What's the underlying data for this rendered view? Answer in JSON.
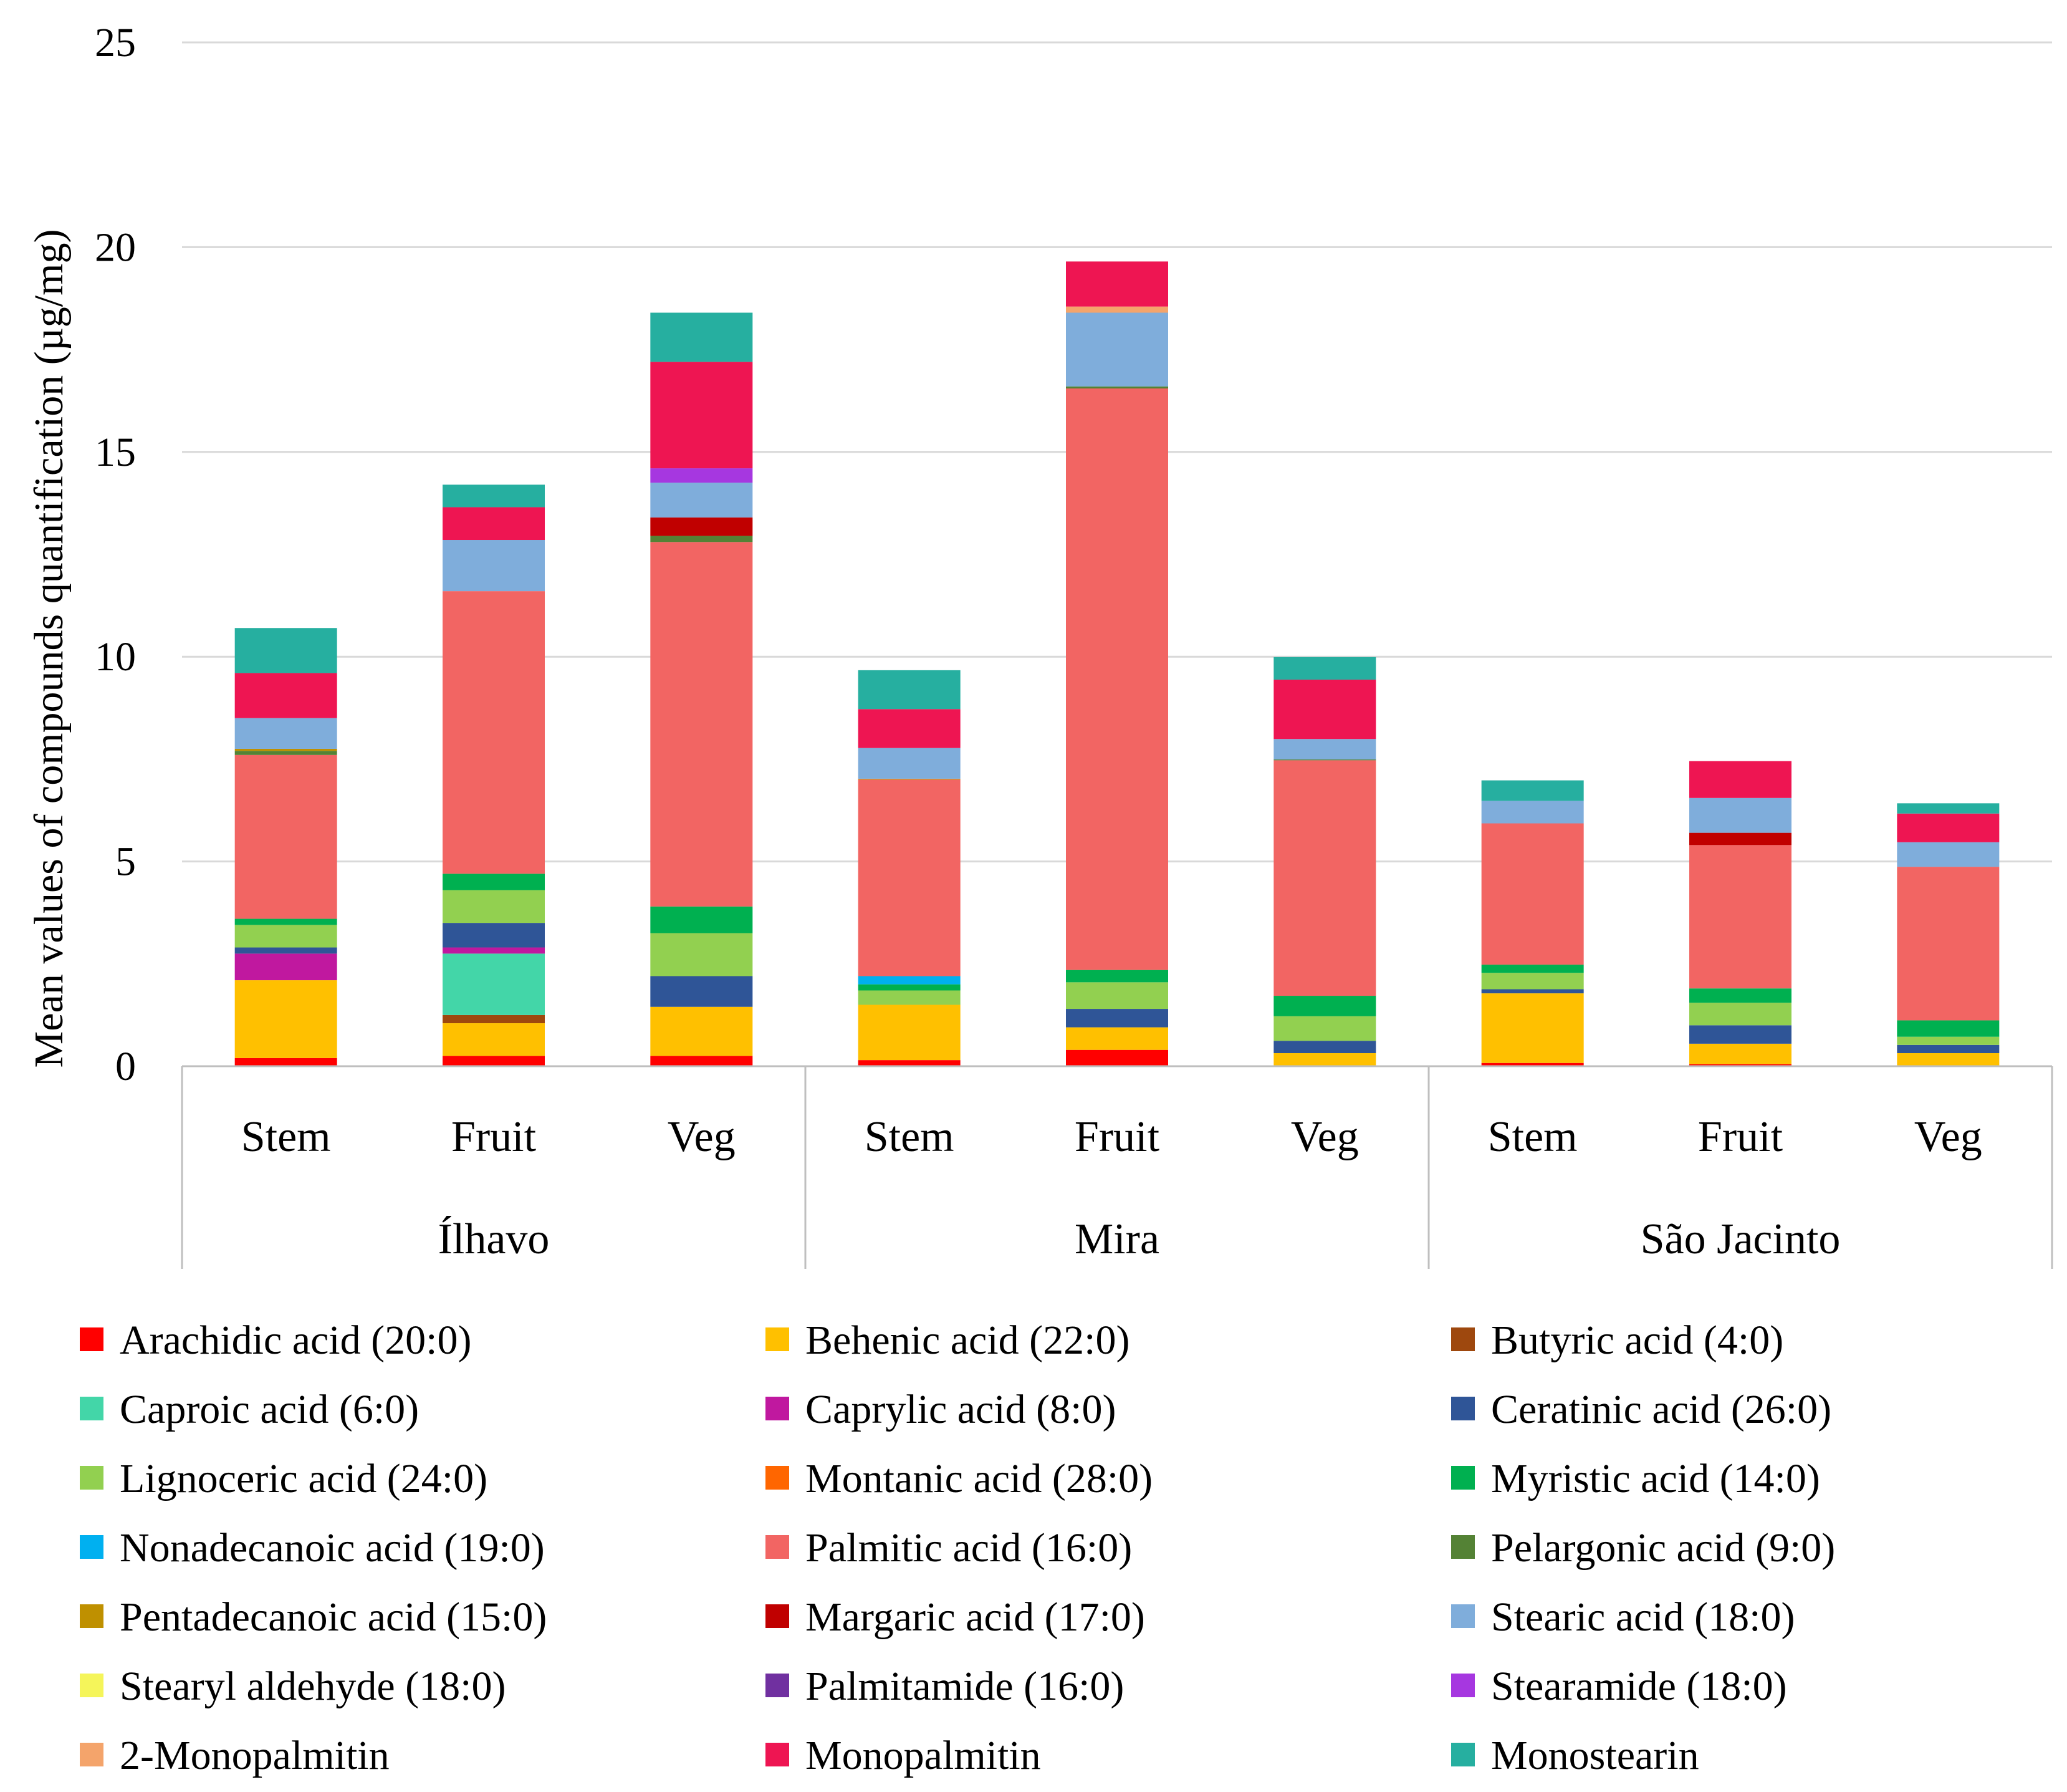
{
  "chart_data": {
    "type": "bar",
    "stacked": true,
    "title": "",
    "xlabel": "",
    "ylabel": "Mean values of compounds quantification (µg/mg)",
    "ylim": [
      0,
      25
    ],
    "yticks": [
      "0",
      "5",
      "10",
      "15",
      "20",
      "25"
    ],
    "grid": true,
    "legend_position": "bottom",
    "groups": [
      {
        "name": "Ílhavo",
        "categories": [
          "Stem",
          "Fruit",
          "Veg"
        ]
      },
      {
        "name": "Mira",
        "categories": [
          "Stem",
          "Fruit",
          "Veg"
        ]
      },
      {
        "name": "São Jacinto",
        "categories": [
          "Stem",
          "Fruit",
          "Veg"
        ]
      }
    ],
    "series": [
      {
        "name": "Arachidic acid (20:0)",
        "color": "#FF0000",
        "values": [
          0.2,
          0.25,
          0.25,
          0.15,
          0.4,
          0.02,
          0.08,
          0.05,
          0.02
        ]
      },
      {
        "name": "Behenic acid (22:0)",
        "color": "#FFC000",
        "values": [
          1.9,
          0.8,
          1.2,
          1.35,
          0.55,
          0.3,
          1.7,
          0.5,
          0.3
        ]
      },
      {
        "name": "Butyric acid (4:0)",
        "color": "#9E480E",
        "values": [
          0,
          0.2,
          0,
          0,
          0,
          0,
          0,
          0,
          0
        ]
      },
      {
        "name": "Caproic acid (6:0)",
        "color": "#43D6A8",
        "values": [
          0,
          1.5,
          0,
          0,
          0,
          0,
          0,
          0,
          0
        ]
      },
      {
        "name": "Caprylic acid (8:0)",
        "color": "#C0189F",
        "values": [
          0.65,
          0.15,
          0,
          0,
          0,
          0,
          0,
          0,
          0
        ]
      },
      {
        "name": "Ceratinic acid (26:0)",
        "color": "#2F5597",
        "values": [
          0.15,
          0.6,
          0.75,
          0,
          0.45,
          0.3,
          0.1,
          0.45,
          0.2
        ]
      },
      {
        "name": "Lignoceric acid (24:0)",
        "color": "#92D050",
        "values": [
          0.55,
          0.8,
          1.05,
          0.35,
          0.65,
          0.6,
          0.4,
          0.55,
          0.2
        ]
      },
      {
        "name": "Montanic acid (28:0)",
        "color": "#FF6600",
        "values": [
          0,
          0,
          0,
          0,
          0,
          0,
          0,
          0,
          0
        ]
      },
      {
        "name": "Myristic acid (14:0)",
        "color": "#00B050",
        "values": [
          0.15,
          0.4,
          0.65,
          0.15,
          0.3,
          0.5,
          0.2,
          0.35,
          0.4
        ]
      },
      {
        "name": "Nonadecanoic acid (19:0)",
        "color": "#00B0F0",
        "values": [
          0,
          0,
          0,
          0.2,
          0,
          0,
          0,
          0,
          0
        ]
      },
      {
        "name": "Palmitic acid (16:0)",
        "color": "#F26563",
        "values": [
          4.0,
          6.9,
          8.9,
          4.8,
          14.2,
          5.75,
          3.45,
          3.5,
          3.75
        ]
      },
      {
        "name": "Pelargonic acid (9:0)",
        "color": "#548235",
        "values": [
          0.1,
          0,
          0.15,
          0,
          0.05,
          0.02,
          0,
          0,
          0
        ]
      },
      {
        "name": "Pentadecanoic acid (15:0)",
        "color": "#BF9000",
        "values": [
          0.05,
          0,
          0,
          0.02,
          0,
          0,
          0,
          0,
          0
        ]
      },
      {
        "name": "Margaric acid (17:0)",
        "color": "#C00000",
        "values": [
          0,
          0,
          0.45,
          0,
          0,
          0,
          0,
          0.3,
          0
        ]
      },
      {
        "name": "Stearic acid (18:0)",
        "color": "#7FADDB",
        "values": [
          0.75,
          1.25,
          0.85,
          0.75,
          1.8,
          0.5,
          0.55,
          0.85,
          0.6
        ]
      },
      {
        "name": "Stearyl aldehyde (18:0)",
        "color": "#F5F55A",
        "values": [
          0,
          0,
          0,
          0,
          0,
          0,
          0,
          0,
          0
        ]
      },
      {
        "name": "Palmitamide (16:0)",
        "color": "#7030A0",
        "values": [
          0,
          0,
          0,
          0,
          0,
          0,
          0,
          0,
          0
        ]
      },
      {
        "name": "Stearamide (18:0)",
        "color": "#A637E0",
        "values": [
          0,
          0,
          0.35,
          0,
          0,
          0,
          0,
          0,
          0
        ]
      },
      {
        "name": "2-Monopalmitin",
        "color": "#F4A46B",
        "values": [
          0,
          0,
          0,
          0,
          0.15,
          0,
          0,
          0,
          0
        ]
      },
      {
        "name": "Monopalmitin",
        "color": "#EE1552",
        "values": [
          1.1,
          0.8,
          2.6,
          0.95,
          1.1,
          1.45,
          0,
          0.9,
          0.7
        ]
      },
      {
        "name": "Monostearin",
        "color": "#26AFA0",
        "values": [
          1.1,
          0.55,
          1.2,
          0.95,
          0,
          0.55,
          0.5,
          0,
          0.25
        ]
      }
    ]
  }
}
